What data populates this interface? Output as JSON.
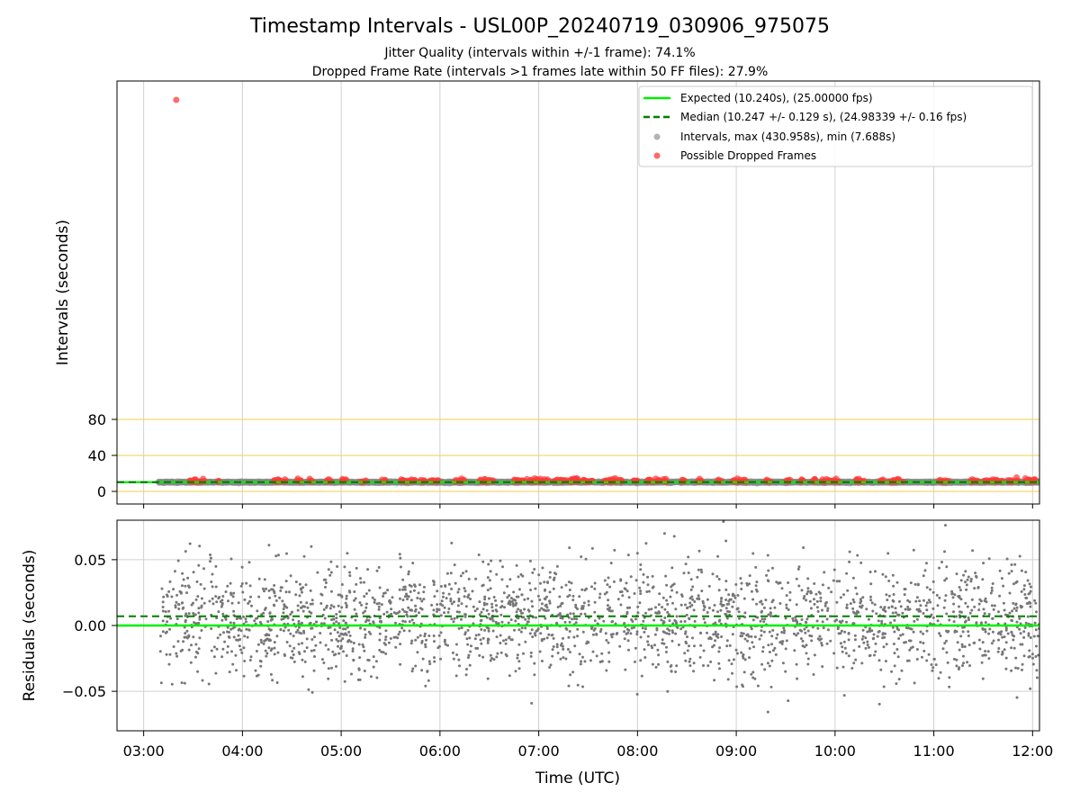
{
  "chart_data": [
    {
      "type": "scatter",
      "title": "Timestamp Intervals - USL00P_20240719_030906_975075",
      "subtitle_lines": [
        "Jitter Quality (intervals within +/-1 frame): 74.1%",
        "Dropped Frame Rate (intervals >1 frames late within 50 FF files): 27.9%"
      ],
      "xlabel": "",
      "ylabel": "Intervals (seconds)",
      "y_ticks": [
        0,
        40,
        80
      ],
      "y_tick_labels": [
        "0",
        "40",
        "80"
      ],
      "reference_lines": [
        0,
        40,
        80
      ],
      "grid": true,
      "legend_position": "top-right",
      "legend": [
        {
          "label": "Expected (10.240s), (25.00000 fps)",
          "kind": "line-solid",
          "color": "#00ee00"
        },
        {
          "label": "Median (10.247 +/- 0.129 s), (24.98339 +/- 0.16 fps)",
          "kind": "line-dashed",
          "color": "#007f00"
        },
        {
          "label": "Intervals, max (430.958s), min (7.688s)",
          "kind": "marker",
          "color": "#9a9a9a"
        },
        {
          "label": "Possible Dropped Frames",
          "kind": "marker",
          "color": "#ff4444"
        }
      ],
      "expected_interval": 10.24,
      "median_interval": 10.247,
      "outlier_point": {
        "x_hours": 3.33,
        "y": 430.958
      },
      "dropped_clusters_hours": [
        [
          3.45,
          3.62
        ],
        [
          3.75,
          3.78
        ],
        [
          4.3,
          4.45
        ],
        [
          4.55,
          4.6
        ],
        [
          4.68,
          4.72
        ],
        [
          4.85,
          4.9
        ],
        [
          5.0,
          5.05
        ],
        [
          5.2,
          5.25
        ],
        [
          5.4,
          5.45
        ],
        [
          5.6,
          5.75
        ],
        [
          5.8,
          5.85
        ],
        [
          5.9,
          6.0
        ],
        [
          6.15,
          6.25
        ],
        [
          6.4,
          6.55
        ],
        [
          6.75,
          7.1
        ],
        [
          7.15,
          7.55
        ],
        [
          7.65,
          7.85
        ],
        [
          7.95,
          8.0
        ],
        [
          8.1,
          8.3
        ],
        [
          8.45,
          8.5
        ],
        [
          8.6,
          8.65
        ],
        [
          8.8,
          8.85
        ],
        [
          8.95,
          9.1
        ],
        [
          9.3,
          9.35
        ],
        [
          9.5,
          9.55
        ],
        [
          9.65,
          9.7
        ],
        [
          9.75,
          9.8
        ],
        [
          9.85,
          10.05
        ],
        [
          10.2,
          10.3
        ],
        [
          10.45,
          10.5
        ],
        [
          10.55,
          10.7
        ],
        [
          11.05,
          11.15
        ],
        [
          11.35,
          11.45
        ],
        [
          11.5,
          11.7
        ],
        [
          11.75,
          11.85
        ],
        [
          11.9,
          12.05
        ]
      ]
    },
    {
      "type": "scatter",
      "xlabel": "Time (UTC)",
      "ylabel": "Residuals (seconds)",
      "x_ticks_hours": [
        3,
        4,
        5,
        6,
        7,
        8,
        9,
        10,
        11,
        12
      ],
      "x_tick_labels": [
        "03:00",
        "04:00",
        "05:00",
        "06:00",
        "07:00",
        "08:00",
        "09:00",
        "10:00",
        "11:00",
        "12:00"
      ],
      "xlim_hours": [
        2.73,
        12.07
      ],
      "ylim": [
        -0.08,
        0.08
      ],
      "y_ticks": [
        0.05,
        0.0,
        -0.05
      ],
      "y_tick_labels": [
        "0.05",
        "0.00",
        "−0.05"
      ],
      "expected_residual": 0.0,
      "median_residual": 0.007,
      "data_range_hours": [
        3.15,
        12.07
      ],
      "residual_spread_sd": 0.021,
      "grid": true
    }
  ]
}
